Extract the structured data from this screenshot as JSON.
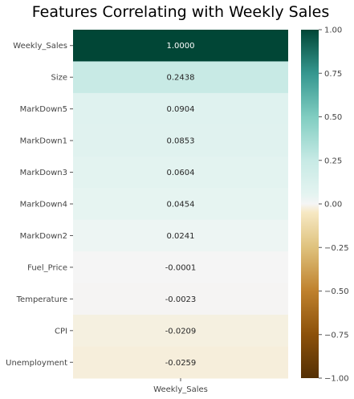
{
  "chart_data": {
    "type": "heatmap",
    "title": "Features Correlating with Weekly Sales",
    "xlabel": "",
    "ylabel": "",
    "columns": [
      "Weekly_Sales"
    ],
    "rows": [
      "Weekly_Sales",
      "Size",
      "MarkDown5",
      "MarkDown1",
      "MarkDown3",
      "MarkDown4",
      "MarkDown2",
      "Fuel_Price",
      "Temperature",
      "CPI",
      "Unemployment"
    ],
    "values": [
      1.0,
      0.2438,
      0.0904,
      0.0853,
      0.0604,
      0.0454,
      0.0241,
      -0.0001,
      -0.0023,
      -0.0209,
      -0.0259
    ],
    "value_labels": [
      "1.0000",
      "0.2438",
      "0.0904",
      "0.0853",
      "0.0604",
      "0.0454",
      "0.0241",
      "-0.0001",
      "-0.0023",
      "-0.0209",
      "-0.0259"
    ],
    "colorbar": {
      "colormap": "BrBG",
      "range": [
        -1.0,
        1.0
      ],
      "ticks": [
        1.0,
        0.75,
        0.5,
        0.25,
        0.0,
        -0.25,
        -0.5,
        -0.75,
        -1.0
      ],
      "tick_labels": [
        "1.00",
        "0.75",
        "0.50",
        "0.25",
        "0.00",
        "−0.25",
        "−0.50",
        "−0.75",
        "−1.00"
      ]
    },
    "grid": false
  }
}
